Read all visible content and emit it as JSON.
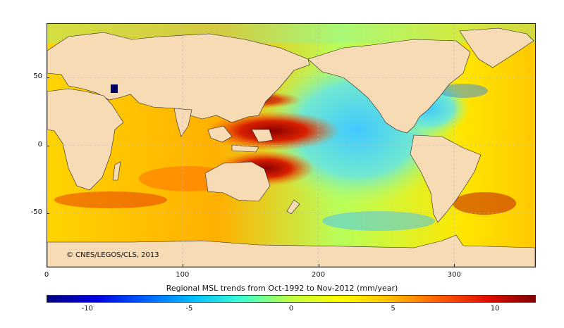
{
  "map": {
    "credit": "©  CNES/LEGOS/CLS, 2013",
    "y_ticks": [
      {
        "label": "50",
        "lat": 50
      },
      {
        "label": "0",
        "lat": 0
      },
      {
        "label": "-50",
        "lat": -50
      }
    ],
    "x_ticks": [
      {
        "label": "0",
        "lon": 0
      },
      {
        "label": "100",
        "lon": 100
      },
      {
        "label": "200",
        "lon": 200
      },
      {
        "label": "300",
        "lon": 300
      }
    ],
    "lon_range": [
      0,
      360
    ],
    "lat_range": [
      -90,
      90
    ]
  },
  "colorbar": {
    "title": "Regional MSL trends from Oct-1992 to Nov-2012 (mm/year)",
    "range": [
      -12,
      12
    ],
    "ticks": [
      {
        "label": "-10",
        "value": -10
      },
      {
        "label": "-5",
        "value": -5
      },
      {
        "label": "0",
        "value": 0
      },
      {
        "label": "5",
        "value": 5
      },
      {
        "label": "10",
        "value": 10
      }
    ],
    "colors": [
      "#000080",
      "#0000e0",
      "#0060ff",
      "#00c0ff",
      "#40ffd0",
      "#c0ff40",
      "#ffff00",
      "#ffc000",
      "#ff6000",
      "#e01000",
      "#800000"
    ]
  }
}
